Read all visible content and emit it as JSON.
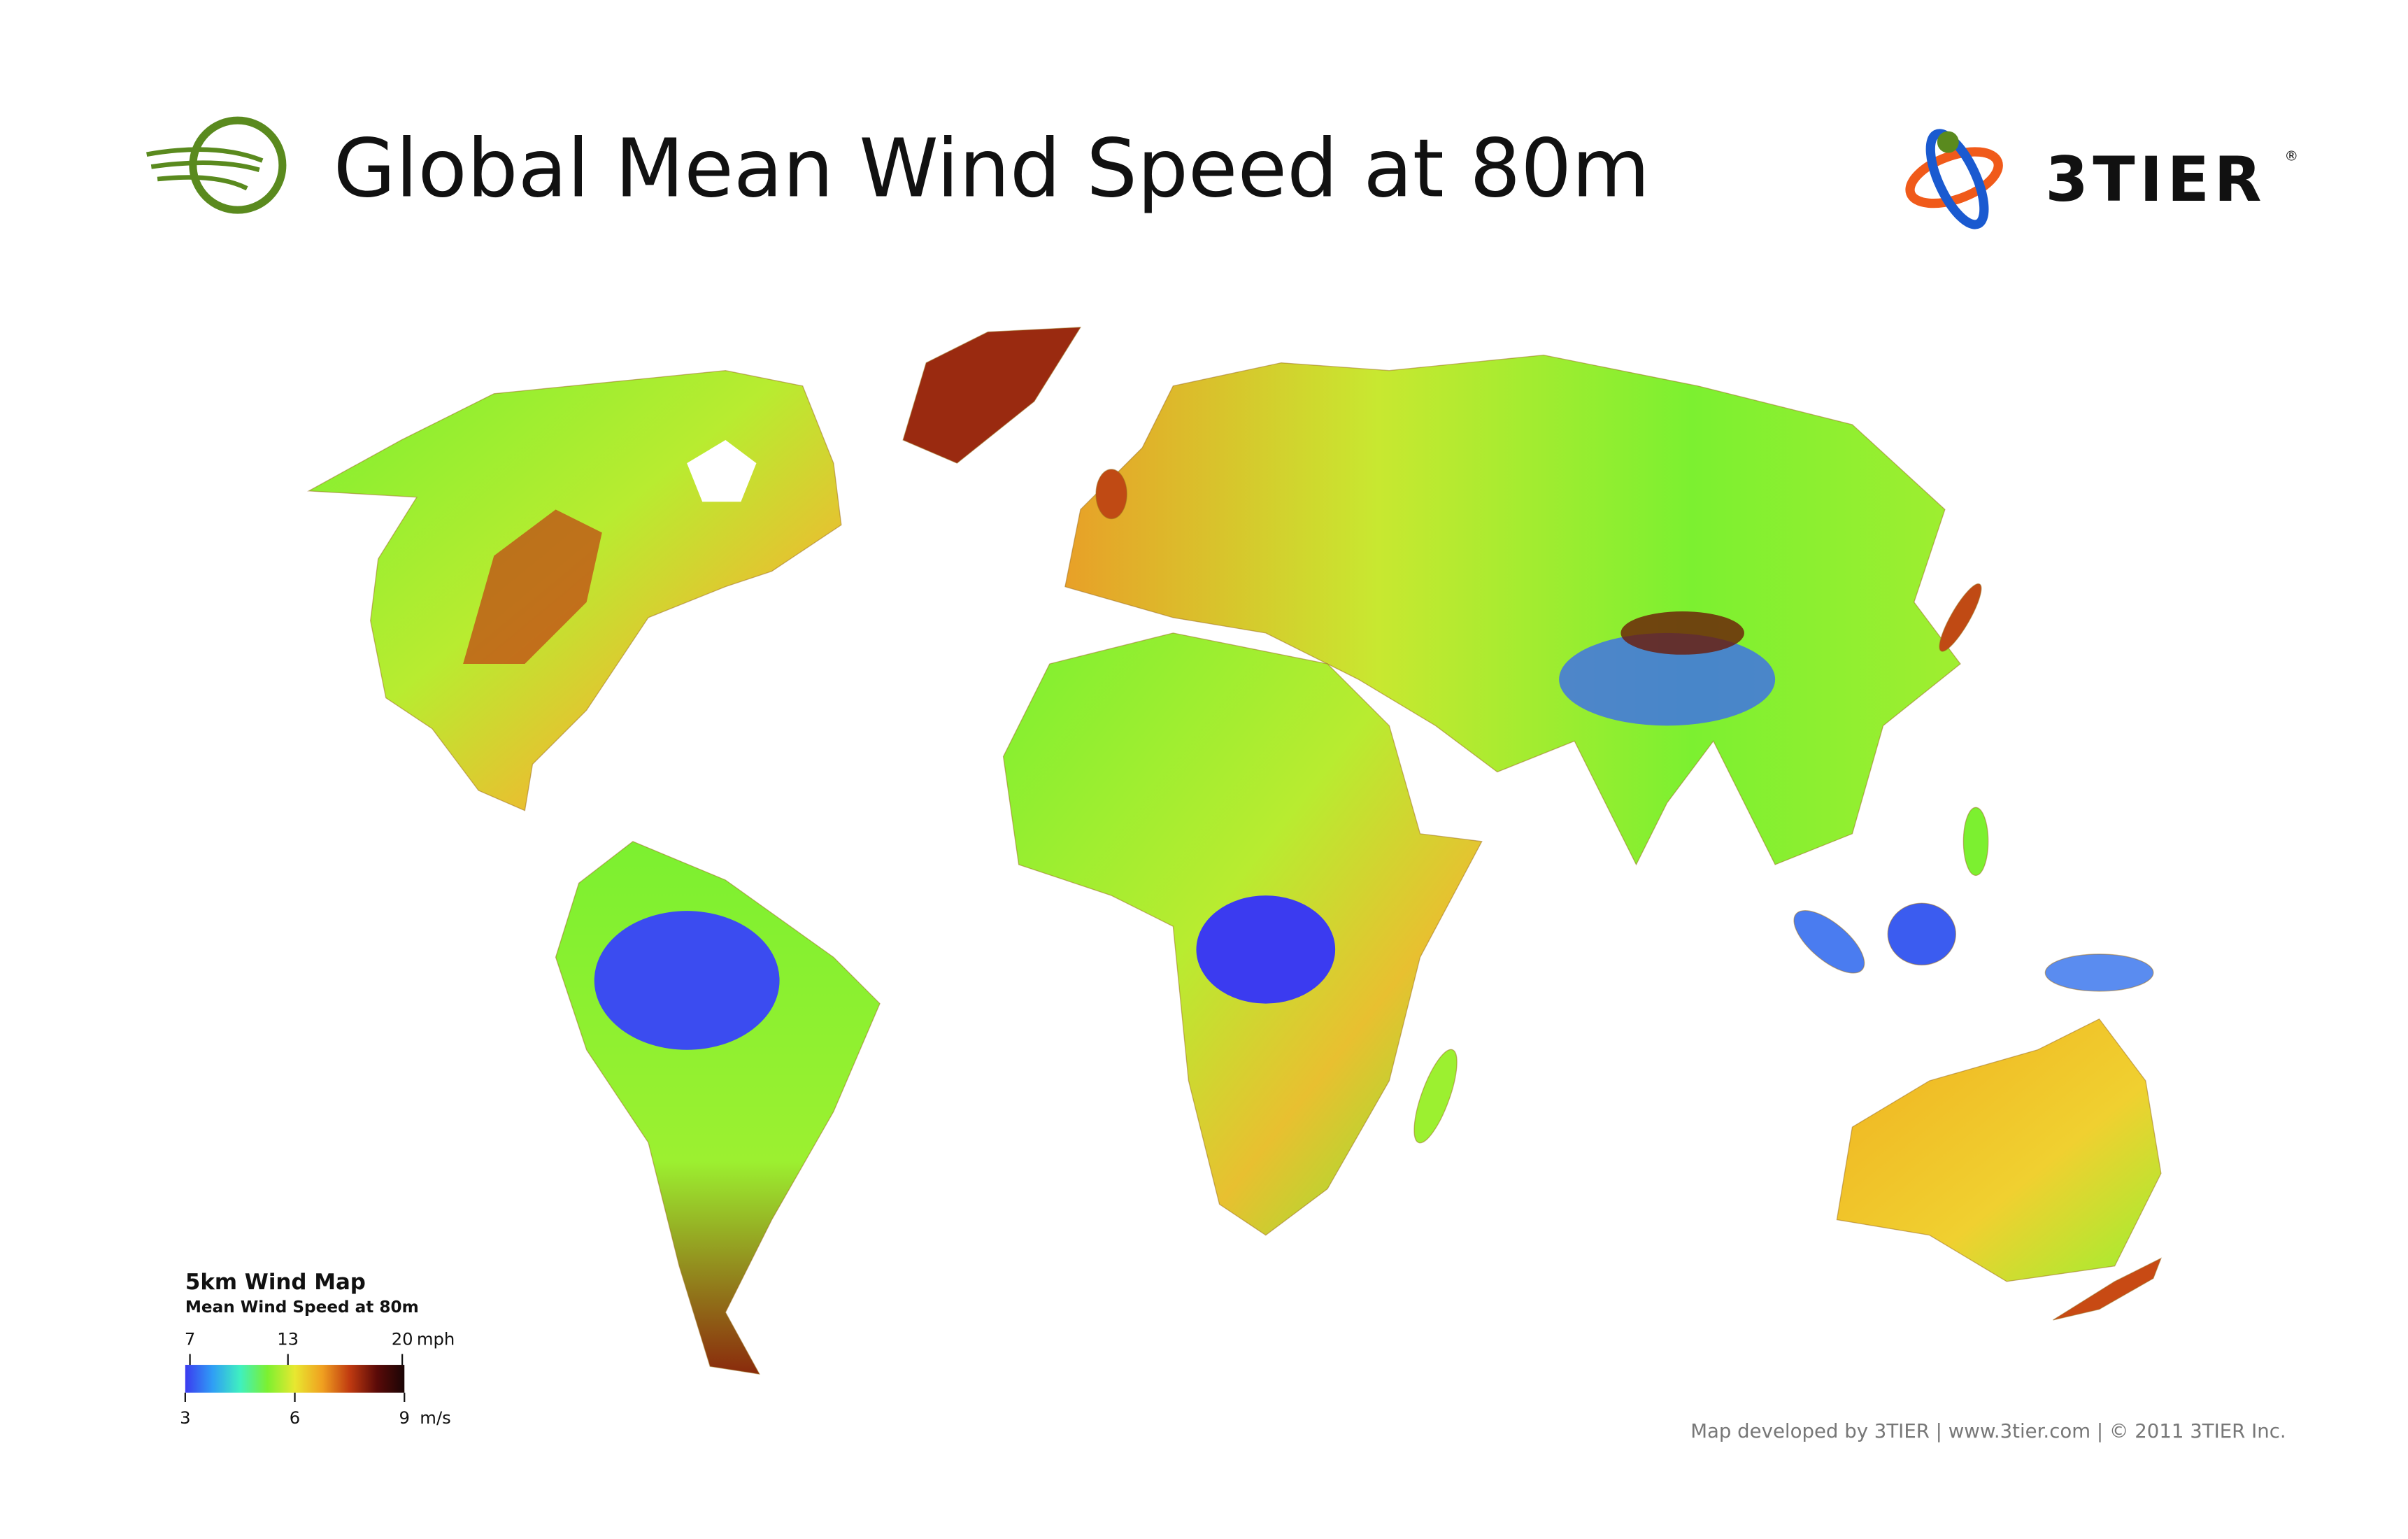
{
  "header": {
    "title": "Global Mean Wind Speed at 80m",
    "brand": "3TIER",
    "registered_mark": "®"
  },
  "legend": {
    "title": "5km Wind Map",
    "subtitle": "Mean Wind Speed at 80m",
    "mph": {
      "unit": "mph",
      "ticks": [
        7,
        13,
        20
      ]
    },
    "ms": {
      "unit": "m/s",
      "ticks": [
        3,
        6,
        9
      ]
    },
    "colors": [
      "#3b3bf0",
      "#2f9ef5",
      "#3ff0c0",
      "#7cf030",
      "#e8e830",
      "#f0a020",
      "#c03a10",
      "#5a0a08",
      "#1a0505"
    ]
  },
  "footer": "Map developed by 3TIER  |  www.3tier.com  |  © 2011 3TIER Inc."
}
